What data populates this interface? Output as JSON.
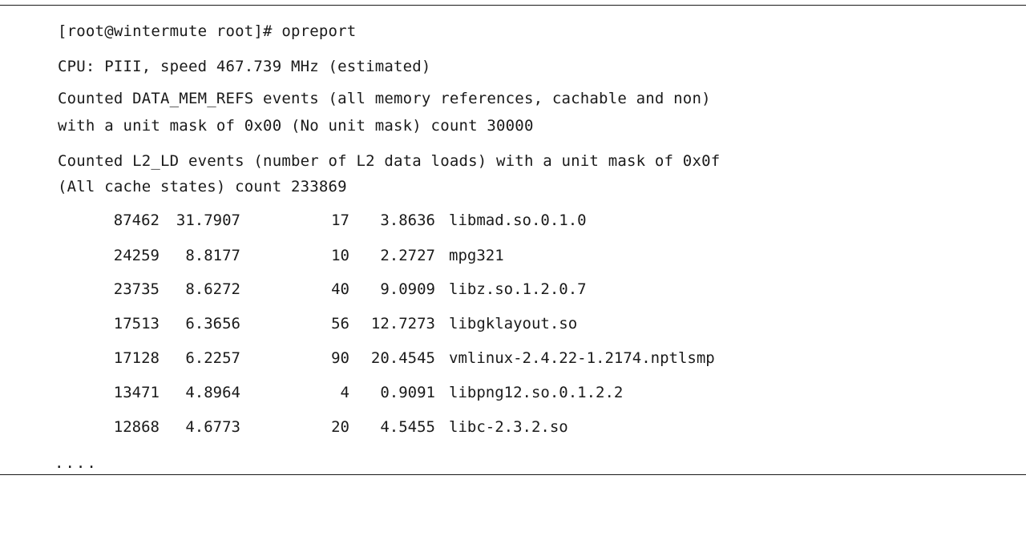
{
  "terminal": {
    "prompt_line": "[root@wintermute root]# opreport",
    "cpu_line": "CPU: PIII, speed 467.739 MHz (estimated)",
    "event1_line1": "Counted DATA_MEM_REFS events (all memory references, cachable and non)",
    "event1_line2": "with a unit mask of 0x00 (No unit mask) count 30000",
    "event2_line1": "Counted L2_LD events (number of L2 data loads) with a unit mask of 0x0f",
    "event2_line2": "(All cache states) count 233869",
    "rows": [
      {
        "samples1": "87462",
        "percent1": "31.7907",
        "samples2": "17",
        "percent2": "3.8636",
        "image": "libmad.so.0.1.0"
      },
      {
        "samples1": "24259",
        "percent1": "8.8177",
        "samples2": "10",
        "percent2": "2.2727",
        "image": "mpg321"
      },
      {
        "samples1": "23735",
        "percent1": "8.6272",
        "samples2": "40",
        "percent2": "9.0909",
        "image": "libz.so.1.2.0.7"
      },
      {
        "samples1": "17513",
        "percent1": "6.3656",
        "samples2": "56",
        "percent2": "12.7273",
        "image": "libgklayout.so"
      },
      {
        "samples1": "17128",
        "percent1": "6.2257",
        "samples2": "90",
        "percent2": "20.4545",
        "image": "vmlinux-2.4.22-1.2174.nptlsmp"
      },
      {
        "samples1": "13471",
        "percent1": "4.8964",
        "samples2": "4",
        "percent2": "0.9091",
        "image": "libpng12.so.0.1.2.2"
      },
      {
        "samples1": "12868",
        "percent1": "4.6773",
        "samples2": "20",
        "percent2": "4.5455",
        "image": "libc-2.3.2.so"
      }
    ],
    "ellipsis": "...."
  }
}
